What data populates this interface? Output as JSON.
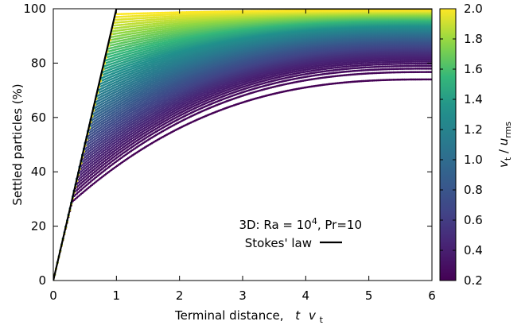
{
  "chart_data": {
    "type": "scatter",
    "title": "",
    "xlabel": {
      "text": "Terminal distance,",
      "var_t": "t",
      "var_v": "v",
      "sub": "t"
    },
    "ylabel": "Settled particles (%)",
    "xlim": [
      0,
      6
    ],
    "ylim": [
      0,
      100
    ],
    "x_ticks": [
      0,
      1,
      2,
      3,
      4,
      5,
      6
    ],
    "y_ticks": [
      0,
      20,
      40,
      60,
      80,
      100
    ],
    "x_tick_labels": [
      "0",
      "1",
      "2",
      "3",
      "4",
      "5",
      "6"
    ],
    "y_tick_labels": [
      "0",
      "20",
      "40",
      "60",
      "80",
      "100"
    ],
    "grid": false,
    "colormap": "viridis",
    "colorbar": {
      "label_num": "v",
      "label_num_sub": "t",
      "label_sep": " / ",
      "label_den": "u",
      "label_den_sub": "rms",
      "range": [
        0.2,
        2.0
      ],
      "ticks": [
        0.2,
        0.4,
        0.6,
        0.8,
        1.0,
        1.2,
        1.4,
        1.6,
        1.8,
        2.0
      ],
      "tick_labels": [
        "0.2",
        "0.4",
        "0.6",
        "0.8",
        "1.0",
        "1.2",
        "1.4",
        "1.6",
        "1.8",
        "2.0"
      ]
    },
    "annotation": {
      "prefix": "3D: Ra = 10",
      "exponent": "4",
      "suffix": ", Pr=10"
    },
    "legend": {
      "entry": "Stokes' law",
      "placement": "lower-right",
      "color": "#000000"
    },
    "reference_line": {
      "name": "Stokes' law",
      "x": [
        0,
        1,
        6
      ],
      "y": [
        0,
        100,
        100
      ]
    },
    "curve_family": {
      "count": 60,
      "ratio_range": [
        0.2,
        2.0
      ],
      "x_range": [
        0,
        6
      ],
      "initial_slope_percent_per_unit": 100,
      "knee_x": [
        0.3,
        1.0
      ],
      "knee_y": [
        29,
        98
      ],
      "final_y_at_x6": [
        74,
        99.5
      ]
    }
  }
}
